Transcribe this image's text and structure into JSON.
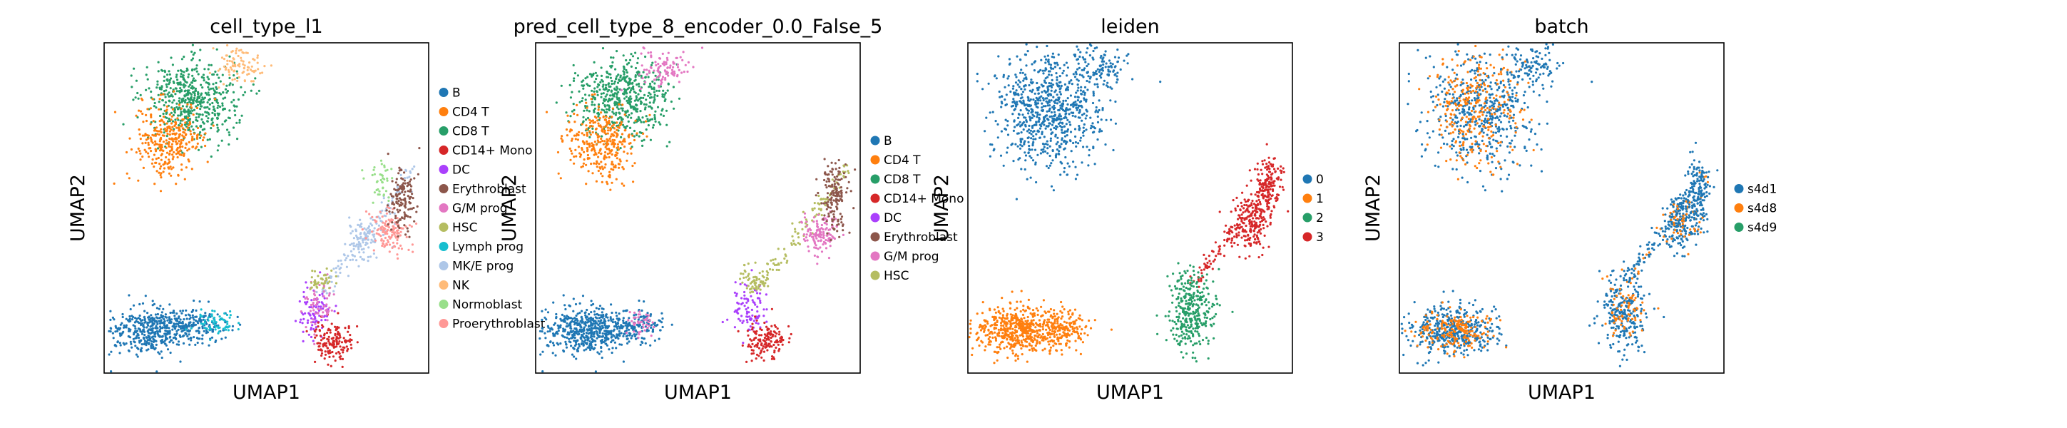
{
  "figure": {
    "background": "#ffffff",
    "axis_color": "#000000"
  },
  "chart_data": [
    {
      "type": "scatter",
      "title": "cell_type_l1",
      "xlabel": "UMAP1",
      "ylabel": "UMAP2",
      "grid": false,
      "legend_placement": "right",
      "legend": [
        {
          "label": "B",
          "color": "#1f77b4"
        },
        {
          "label": "CD4 T",
          "color": "#ff7f0e"
        },
        {
          "label": "CD8 T",
          "color": "#279e68"
        },
        {
          "label": "CD14+ Mono",
          "color": "#d62728"
        },
        {
          "label": "DC",
          "color": "#aa40fc"
        },
        {
          "label": "Erythroblast",
          "color": "#8c564b"
        },
        {
          "label": "G/M prog",
          "color": "#e377c2"
        },
        {
          "label": "HSC",
          "color": "#b5bd61"
        },
        {
          "label": "Lymph prog",
          "color": "#17becf"
        },
        {
          "label": "MK/E prog",
          "color": "#aec7e8"
        },
        {
          "label": "NK",
          "color": "#ffbb78"
        },
        {
          "label": "Normoblast",
          "color": "#98df8a"
        },
        {
          "label": "Proerythroblast",
          "color": "#ff9896"
        }
      ],
      "clusters": [
        {
          "group": "CD8 T",
          "center": [
            0.27,
            0.17
          ],
          "spread": [
            0.07,
            0.06
          ],
          "count": 520
        },
        {
          "group": "CD4 T",
          "center": [
            0.2,
            0.3
          ],
          "spread": [
            0.05,
            0.06
          ],
          "count": 320
        },
        {
          "group": "NK",
          "center": [
            0.41,
            0.07
          ],
          "spread": [
            0.04,
            0.03
          ],
          "count": 90
        },
        {
          "group": "B",
          "center": [
            0.14,
            0.87
          ],
          "spread": [
            0.06,
            0.035
          ],
          "count": 420
        },
        {
          "group": "B",
          "center": [
            0.29,
            0.86
          ],
          "spread": [
            0.05,
            0.025
          ],
          "count": 160
        },
        {
          "group": "Lymph prog",
          "center": [
            0.34,
            0.85
          ],
          "spread": [
            0.03,
            0.02
          ],
          "count": 60
        },
        {
          "group": "DC",
          "center": [
            0.65,
            0.82
          ],
          "spread": [
            0.025,
            0.04
          ],
          "count": 90
        },
        {
          "group": "CD14+ Mono",
          "center": [
            0.71,
            0.9
          ],
          "spread": [
            0.03,
            0.03
          ],
          "count": 150
        },
        {
          "group": "G/M prog",
          "center": [
            0.66,
            0.78
          ],
          "spread": [
            0.03,
            0.04
          ],
          "count": 60
        },
        {
          "group": "HSC",
          "center": [
            0.67,
            0.72
          ],
          "spread": [
            0.02,
            0.02
          ],
          "count": 40
        },
        {
          "group": "Normoblast",
          "center": [
            0.85,
            0.42
          ],
          "spread": [
            0.02,
            0.03
          ],
          "count": 40
        },
        {
          "group": "MK/E prog",
          "center": [
            0.8,
            0.6
          ],
          "spread": [
            0.03,
            0.03
          ],
          "count": 70
        },
        {
          "group": "Proerythroblast",
          "center": [
            0.88,
            0.57
          ],
          "spread": [
            0.03,
            0.03
          ],
          "count": 130
        },
        {
          "group": "Erythroblast",
          "center": [
            0.92,
            0.47
          ],
          "spread": [
            0.02,
            0.05
          ],
          "count": 140
        }
      ],
      "links": [
        {
          "group": "MK/E prog",
          "from": [
            0.67,
            0.76
          ],
          "to": [
            0.96,
            0.38
          ],
          "count": 130
        }
      ]
    },
    {
      "type": "scatter",
      "title": "pred_cell_type_8_encoder_0.0_False_5",
      "xlabel": "UMAP1",
      "ylabel": "UMAP2",
      "grid": false,
      "legend_placement": "right",
      "legend": [
        {
          "label": "B",
          "color": "#1f77b4"
        },
        {
          "label": "CD4 T",
          "color": "#ff7f0e"
        },
        {
          "label": "CD8 T",
          "color": "#279e68"
        },
        {
          "label": "CD14+ Mono",
          "color": "#d62728"
        },
        {
          "label": "DC",
          "color": "#aa40fc"
        },
        {
          "label": "Erythroblast",
          "color": "#8c564b"
        },
        {
          "label": "G/M prog",
          "color": "#e377c2"
        },
        {
          "label": "HSC",
          "color": "#b5bd61"
        }
      ],
      "clusters": [
        {
          "group": "CD8 T",
          "center": [
            0.27,
            0.17
          ],
          "spread": [
            0.07,
            0.06
          ],
          "count": 520
        },
        {
          "group": "CD4 T",
          "center": [
            0.2,
            0.3
          ],
          "spread": [
            0.05,
            0.06
          ],
          "count": 320
        },
        {
          "group": "G/M prog",
          "center": [
            0.4,
            0.08
          ],
          "spread": [
            0.04,
            0.03
          ],
          "count": 100
        },
        {
          "group": "B",
          "center": [
            0.16,
            0.87
          ],
          "spread": [
            0.07,
            0.035
          ],
          "count": 560
        },
        {
          "group": "B",
          "center": [
            0.33,
            0.86
          ],
          "spread": [
            0.035,
            0.025
          ],
          "count": 100
        },
        {
          "group": "G/M prog",
          "center": [
            0.33,
            0.85
          ],
          "spread": [
            0.025,
            0.02
          ],
          "count": 40
        },
        {
          "group": "DC",
          "center": [
            0.65,
            0.81
          ],
          "spread": [
            0.025,
            0.04
          ],
          "count": 90
        },
        {
          "group": "CD14+ Mono",
          "center": [
            0.71,
            0.9
          ],
          "spread": [
            0.03,
            0.03
          ],
          "count": 150
        },
        {
          "group": "HSC",
          "center": [
            0.67,
            0.72
          ],
          "spread": [
            0.02,
            0.02
          ],
          "count": 40
        },
        {
          "group": "G/M prog",
          "center": [
            0.88,
            0.57
          ],
          "spread": [
            0.03,
            0.03
          ],
          "count": 130
        },
        {
          "group": "Erythroblast",
          "center": [
            0.92,
            0.47
          ],
          "spread": [
            0.02,
            0.05
          ],
          "count": 150
        }
      ],
      "links": [
        {
          "group": "HSC",
          "from": [
            0.67,
            0.76
          ],
          "to": [
            0.96,
            0.38
          ],
          "count": 130
        }
      ]
    },
    {
      "type": "scatter",
      "title": "leiden",
      "xlabel": "UMAP1",
      "ylabel": "UMAP2",
      "grid": false,
      "legend_placement": "right",
      "legend": [
        {
          "label": "0",
          "color": "#1f77b4"
        },
        {
          "label": "1",
          "color": "#ff7f0e"
        },
        {
          "label": "2",
          "color": "#279e68"
        },
        {
          "label": "3",
          "color": "#d62728"
        }
      ],
      "clusters": [
        {
          "group": "0",
          "center": [
            0.25,
            0.2
          ],
          "spread": [
            0.08,
            0.09
          ],
          "count": 800
        },
        {
          "group": "0",
          "center": [
            0.41,
            0.07
          ],
          "spread": [
            0.04,
            0.03
          ],
          "count": 100
        },
        {
          "group": "1",
          "center": [
            0.16,
            0.87
          ],
          "spread": [
            0.07,
            0.035
          ],
          "count": 560
        },
        {
          "group": "1",
          "center": [
            0.3,
            0.86
          ],
          "spread": [
            0.04,
            0.025
          ],
          "count": 140
        },
        {
          "group": "2",
          "center": [
            0.69,
            0.81
          ],
          "spread": [
            0.035,
            0.06
          ],
          "count": 330
        },
        {
          "group": "3",
          "center": [
            0.87,
            0.55
          ],
          "spread": [
            0.03,
            0.04
          ],
          "count": 170
        },
        {
          "group": "3",
          "center": [
            0.92,
            0.45
          ],
          "spread": [
            0.02,
            0.05
          ],
          "count": 140
        }
      ],
      "links": [
        {
          "group": "3",
          "from": [
            0.7,
            0.72
          ],
          "to": [
            0.96,
            0.38
          ],
          "count": 140
        }
      ]
    },
    {
      "type": "scatter",
      "title": "batch",
      "xlabel": "UMAP1",
      "ylabel": "UMAP2",
      "grid": false,
      "legend_placement": "right",
      "legend": [
        {
          "label": "s4d1",
          "color": "#1f77b4"
        },
        {
          "label": "s4d8",
          "color": "#ff7f0e"
        },
        {
          "label": "s4d9",
          "color": "#279e68"
        }
      ],
      "clusters": [
        {
          "group": "s4d1",
          "center": [
            0.25,
            0.2
          ],
          "spread": [
            0.08,
            0.09
          ],
          "count": 520
        },
        {
          "group": "s4d8",
          "center": [
            0.24,
            0.2
          ],
          "spread": [
            0.07,
            0.09
          ],
          "count": 300
        },
        {
          "group": "s4d1",
          "center": [
            0.41,
            0.07
          ],
          "spread": [
            0.04,
            0.03
          ],
          "count": 100
        },
        {
          "group": "s4d1",
          "center": [
            0.16,
            0.87
          ],
          "spread": [
            0.07,
            0.035
          ],
          "count": 440
        },
        {
          "group": "s4d8",
          "center": [
            0.18,
            0.87
          ],
          "spread": [
            0.06,
            0.03
          ],
          "count": 180
        },
        {
          "group": "s4d1",
          "center": [
            0.69,
            0.81
          ],
          "spread": [
            0.035,
            0.06
          ],
          "count": 260
        },
        {
          "group": "s4d8",
          "center": [
            0.69,
            0.8
          ],
          "spread": [
            0.03,
            0.05
          ],
          "count": 70
        },
        {
          "group": "s4d1",
          "center": [
            0.87,
            0.55
          ],
          "spread": [
            0.03,
            0.04
          ],
          "count": 150
        },
        {
          "group": "s4d8",
          "center": [
            0.88,
            0.55
          ],
          "spread": [
            0.025,
            0.035
          ],
          "count": 40
        },
        {
          "group": "s4d1",
          "center": [
            0.92,
            0.45
          ],
          "spread": [
            0.02,
            0.05
          ],
          "count": 140
        }
      ],
      "links": [
        {
          "group": "s4d1",
          "from": [
            0.7,
            0.72
          ],
          "to": [
            0.96,
            0.38
          ],
          "count": 120
        },
        {
          "group": "s4d8",
          "from": [
            0.7,
            0.72
          ],
          "to": [
            0.96,
            0.38
          ],
          "count": 30
        }
      ]
    }
  ]
}
